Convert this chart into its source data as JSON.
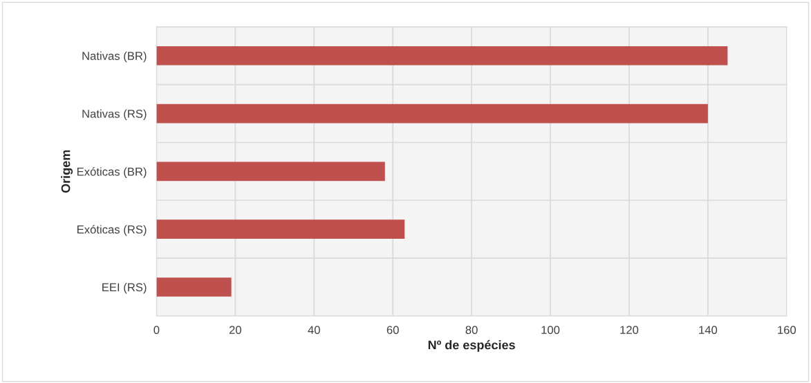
{
  "chart_data": {
    "type": "bar",
    "orientation": "horizontal",
    "categories": [
      "Nativas (BR)",
      "Nativas (RS)",
      "Exóticas (BR)",
      "Exóticas (RS)",
      "EEI (RS)"
    ],
    "values": [
      145,
      140,
      58,
      63,
      19
    ],
    "color": "#c0504d",
    "xlabel": "Nº de espécies",
    "ylabel": "Origem",
    "xlim": [
      0,
      160
    ],
    "xticks": [
      0,
      20,
      40,
      60,
      80,
      100,
      120,
      140,
      160
    ],
    "grid": true,
    "legend": false
  }
}
